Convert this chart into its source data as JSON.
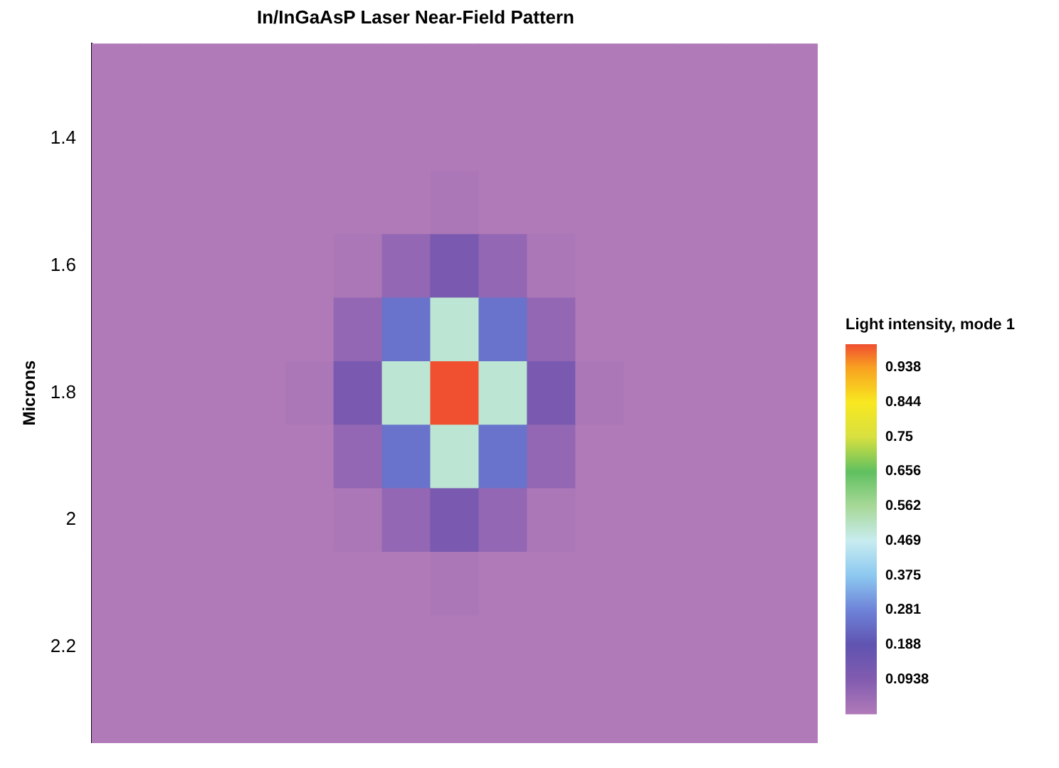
{
  "chart_data": {
    "type": "heatmap",
    "subtitle": "In/InGaAsP Laser Near-Field Pattern",
    "ylabel": "Microns",
    "clabel": "Light intensity, mode 1",
    "categories": [
      null,
      null,
      null,
      null,
      null,
      null,
      null,
      null,
      null,
      null,
      null,
      null,
      null,
      null,
      null
    ],
    "y_categories": [
      null,
      "1.4",
      null,
      "1.6",
      null,
      "1.8",
      null,
      "2",
      null,
      "2.2",
      null
    ],
    "cells": [
      [
        0,
        0,
        0,
        0,
        0,
        0,
        0,
        0,
        0,
        0,
        0,
        0,
        0,
        0,
        0
      ],
      [
        0,
        0,
        0,
        0,
        0,
        0,
        0,
        0,
        0,
        0,
        0,
        0,
        0,
        0,
        0
      ],
      [
        0,
        0,
        0,
        0,
        0,
        0,
        0,
        0.01,
        0,
        0,
        0,
        0,
        0,
        0,
        0
      ],
      [
        0,
        0,
        0,
        0,
        0,
        0.01,
        0.06,
        0.12,
        0.06,
        0.01,
        0,
        0,
        0,
        0,
        0
      ],
      [
        0,
        0,
        0,
        0,
        0,
        0.06,
        0.25,
        0.5,
        0.25,
        0.06,
        0,
        0,
        0,
        0,
        0
      ],
      [
        0,
        0,
        0,
        0,
        0.01,
        0.12,
        0.5,
        1,
        0.5,
        0.12,
        0.01,
        0,
        0,
        0,
        0
      ],
      [
        0,
        0,
        0,
        0,
        0,
        0.06,
        0.25,
        0.5,
        0.25,
        0.06,
        0,
        0,
        0,
        0,
        0
      ],
      [
        0,
        0,
        0,
        0,
        0,
        0.01,
        0.06,
        0.12,
        0.06,
        0.01,
        0,
        0,
        0,
        0,
        0
      ],
      [
        0,
        0,
        0,
        0,
        0,
        0,
        0,
        0.01,
        0,
        0,
        0,
        0,
        0,
        0,
        0
      ],
      [
        0,
        0,
        0,
        0,
        0,
        0,
        0,
        0,
        0,
        0,
        0,
        0,
        0,
        0,
        0
      ],
      [
        0,
        0,
        0,
        0,
        0,
        0,
        0,
        0,
        0,
        0,
        0,
        0,
        0,
        0,
        0
      ]
    ],
    "clim": [
      0,
      1
    ],
    "cticks": [
      0.0938,
      0.188,
      0.281,
      0.375,
      0.469,
      0.562,
      0.656,
      0.75,
      0.844,
      0.938
    ],
    "tick_labels": "y"
  }
}
